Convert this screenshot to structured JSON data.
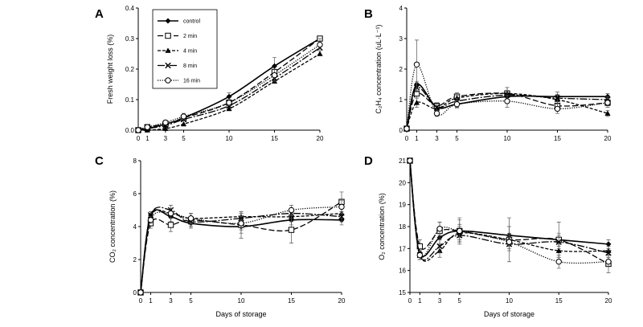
{
  "figure": {
    "series_styles": [
      {
        "name": "control",
        "dash": "",
        "width": 1.6,
        "marker": "diamond"
      },
      {
        "name": "2 min",
        "dash": "7,3",
        "width": 1.3,
        "marker": "square"
      },
      {
        "name": "4 min",
        "dash": "4,2",
        "width": 1.3,
        "marker": "triangle"
      },
      {
        "name": "8 min",
        "dash": "9,2,2,2",
        "width": 1.3,
        "marker": "x"
      },
      {
        "name": "16 min",
        "dash": "1.2,1.6",
        "width": 1.3,
        "marker": "circle"
      }
    ]
  },
  "chart_data": [
    {
      "panel": "A",
      "type": "line",
      "xlabel": "",
      "ylabel": "Fresh weight loss (%)",
      "x": [
        0,
        1,
        3,
        5,
        10,
        15,
        20
      ],
      "xticks": [
        0,
        1,
        3,
        5,
        10,
        15,
        20
      ],
      "xlim": [
        0,
        20
      ],
      "ylim": [
        0,
        0.4
      ],
      "yticks": [
        "0.0",
        "0.1",
        "0.2",
        "0.3",
        "0.4"
      ],
      "legend": "top-left",
      "series": [
        {
          "name": "control",
          "values": [
            0,
            0.005,
            0.02,
            0.04,
            0.11,
            0.21,
            0.3
          ],
          "err": [
            0,
            0,
            0.004,
            0.005,
            0.012,
            0.028,
            0
          ]
        },
        {
          "name": "2 min",
          "values": [
            0,
            0.01,
            0.02,
            0.04,
            0.09,
            0.19,
            0.3
          ],
          "err": [
            0,
            0,
            0,
            0,
            0,
            0,
            0
          ]
        },
        {
          "name": "4 min",
          "values": [
            0,
            0,
            0.005,
            0.02,
            0.07,
            0.16,
            0.25
          ],
          "err": [
            0,
            0,
            0,
            0,
            0,
            0,
            0
          ]
        },
        {
          "name": "8 min",
          "values": [
            0,
            0.005,
            0.015,
            0.035,
            0.08,
            0.17,
            0.27
          ],
          "err": [
            0,
            0,
            0,
            0,
            0,
            0,
            0
          ]
        },
        {
          "name": "16 min",
          "values": [
            0,
            0.01,
            0.025,
            0.045,
            0.09,
            0.18,
            0.28
          ],
          "err": [
            0,
            0,
            0.008,
            0.01,
            0.01,
            0.02,
            0.02
          ]
        }
      ]
    },
    {
      "panel": "B",
      "type": "line",
      "xlabel": "",
      "ylabel": "C₂H₄ concentration (uL·L⁻¹)",
      "x": [
        0,
        1,
        3,
        5,
        10,
        15,
        20
      ],
      "xticks": [
        0,
        1,
        3,
        5,
        10,
        15,
        20
      ],
      "xlim": [
        0,
        20
      ],
      "ylim": [
        0,
        4
      ],
      "yticks": [
        "0",
        "1",
        "2",
        "3",
        "4"
      ],
      "legend": "none",
      "series": [
        {
          "name": "control",
          "values": [
            0.05,
            1.5,
            0.75,
            0.85,
            1.1,
            1.1,
            1.1
          ],
          "err": [
            0,
            0.1,
            0.1,
            0.1,
            0.15,
            0.15,
            0.1
          ]
        },
        {
          "name": "2 min",
          "values": [
            0.05,
            1.2,
            0.8,
            1.1,
            1.2,
            0.8,
            0.9
          ],
          "err": [
            0,
            0.15,
            0.1,
            0.12,
            0.2,
            0.15,
            0.1
          ]
        },
        {
          "name": "4 min",
          "values": [
            0.05,
            0.9,
            0.7,
            1.05,
            1.2,
            1.0,
            0.55
          ],
          "err": [
            0,
            0.15,
            0.1,
            0.1,
            0.2,
            0.15,
            0.1
          ]
        },
        {
          "name": "8 min",
          "values": [
            0.05,
            1.4,
            0.75,
            0.95,
            1.15,
            1.05,
            1.0
          ],
          "err": [
            0,
            0.15,
            0.1,
            0.1,
            0.15,
            0.12,
            0.1
          ]
        },
        {
          "name": "16 min",
          "values": [
            0.05,
            2.15,
            0.55,
            0.85,
            0.95,
            0.7,
            0.9
          ],
          "err": [
            0,
            0.8,
            0.1,
            0.12,
            0.2,
            0.15,
            0.15
          ]
        }
      ]
    },
    {
      "panel": "C",
      "type": "line",
      "xlabel": "Days of storage",
      "ylabel": "CO₂ concentration (%)",
      "x": [
        0,
        1,
        3,
        5,
        10,
        15,
        20
      ],
      "xticks": [
        0,
        1,
        3,
        5,
        10,
        15,
        20
      ],
      "xlim": [
        0,
        20
      ],
      "ylim": [
        0,
        8
      ],
      "yticks": [
        "0",
        "2",
        "4",
        "6",
        "8"
      ],
      "legend": "none",
      "series": [
        {
          "name": "control",
          "values": [
            0,
            4.7,
            4.6,
            4.2,
            4.0,
            4.4,
            4.4
          ],
          "err": [
            0,
            0.2,
            0.3,
            0.3,
            0.4,
            0.3,
            0.3
          ]
        },
        {
          "name": "2 min",
          "values": [
            0,
            4.2,
            4.1,
            4.4,
            4.1,
            3.8,
            5.5
          ],
          "err": [
            0,
            0.3,
            0.4,
            0.4,
            0.8,
            0.8,
            0.6
          ]
        },
        {
          "name": "4 min",
          "values": [
            0,
            4.6,
            4.8,
            4.5,
            4.6,
            4.6,
            4.8
          ],
          "err": [
            0,
            0.2,
            0.3,
            0.3,
            0.3,
            0.3,
            0.3
          ]
        },
        {
          "name": "8 min",
          "values": [
            0,
            4.7,
            5.0,
            4.3,
            4.5,
            4.8,
            4.6
          ],
          "err": [
            0,
            0.2,
            0.3,
            0.3,
            0.3,
            0.3,
            0.3
          ]
        },
        {
          "name": "16 min",
          "values": [
            0,
            4.4,
            4.8,
            4.5,
            4.2,
            5.0,
            5.2
          ],
          "err": [
            0,
            0.2,
            0.3,
            0.3,
            0.4,
            0.3,
            0.4
          ]
        }
      ]
    },
    {
      "panel": "D",
      "type": "line",
      "xlabel": "Days of storage",
      "ylabel": "O₂ concentration (%)",
      "x": [
        0,
        1,
        3,
        5,
        10,
        15,
        20
      ],
      "xticks": [
        0,
        1,
        3,
        5,
        10,
        15,
        20
      ],
      "xlim": [
        0,
        20
      ],
      "ylim": [
        15,
        21
      ],
      "yticks": [
        "15",
        "16",
        "17",
        "18",
        "19",
        "20",
        "21"
      ],
      "legend": "none",
      "series": [
        {
          "name": "control",
          "values": [
            21,
            16.8,
            17.5,
            17.8,
            17.6,
            17.4,
            17.2
          ],
          "err": [
            0,
            0.2,
            0.3,
            0.3,
            0.4,
            0.3,
            0.2
          ]
        },
        {
          "name": "2 min",
          "values": [
            21,
            17.1,
            17.8,
            17.8,
            17.4,
            17.4,
            16.3
          ],
          "err": [
            0,
            0.3,
            0.4,
            0.5,
            1.0,
            0.8,
            0.4
          ]
        },
        {
          "name": "4 min",
          "values": [
            21,
            16.7,
            16.9,
            17.7,
            17.4,
            16.9,
            16.9
          ],
          "err": [
            0,
            0.2,
            0.3,
            0.3,
            0.3,
            0.3,
            0.2
          ]
        },
        {
          "name": "8 min",
          "values": [
            21,
            16.7,
            17.1,
            17.6,
            17.2,
            17.3,
            16.8
          ],
          "err": [
            0,
            0.2,
            0.3,
            0.3,
            0.3,
            0.3,
            0.2
          ]
        },
        {
          "name": "16 min",
          "values": [
            21,
            16.7,
            17.9,
            17.8,
            17.3,
            16.4,
            16.4
          ],
          "err": [
            0,
            0.2,
            0.3,
            0.6,
            0.3,
            0.3,
            0.2
          ]
        }
      ]
    }
  ]
}
